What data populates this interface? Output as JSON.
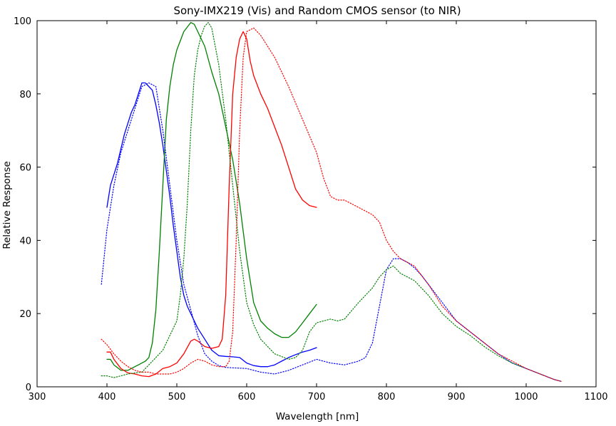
{
  "chart_data": {
    "type": "line",
    "title": "Sony-IMX219 (Vis) and Random CMOS sensor (to NIR)",
    "xlabel": "Wavelength [nm]",
    "ylabel": "Relative Response",
    "xlim": [
      300,
      1100
    ],
    "ylim": [
      0,
      100
    ],
    "xticks": [
      300,
      400,
      500,
      600,
      700,
      800,
      900,
      1000,
      1100
    ],
    "yticks": [
      0,
      20,
      40,
      60,
      80,
      100
    ],
    "grid": false,
    "legend": "none",
    "series": [
      {
        "color": "#0000ff",
        "style": "solid",
        "x": [
          400,
          405,
          410,
          415,
          420,
          425,
          430,
          435,
          440,
          445,
          450,
          455,
          460,
          465,
          470,
          475,
          480,
          485,
          490,
          495,
          500,
          505,
          510,
          515,
          520,
          525,
          530,
          540,
          550,
          560,
          570,
          580,
          590,
          600,
          610,
          620,
          630,
          640,
          650,
          660,
          670,
          680,
          690,
          700
        ],
        "y": [
          49,
          55,
          58,
          61,
          65,
          69,
          72,
          75,
          77,
          80,
          83,
          83,
          82,
          81,
          77,
          72,
          66,
          59,
          52,
          44,
          37,
          30,
          25,
          22,
          20,
          18,
          16,
          13,
          10,
          8.5,
          8.3,
          8.2,
          8,
          6.5,
          5.8,
          5.5,
          5.5,
          6,
          7,
          8,
          8.8,
          9.5,
          10,
          10.7
        ]
      },
      {
        "color": "#008000",
        "style": "solid",
        "x": [
          400,
          405,
          410,
          420,
          430,
          440,
          445,
          450,
          455,
          460,
          465,
          470,
          475,
          480,
          485,
          490,
          495,
          500,
          510,
          520,
          525,
          530,
          540,
          550,
          560,
          570,
          580,
          590,
          600,
          610,
          620,
          630,
          640,
          650,
          660,
          670,
          680,
          690,
          700
        ],
        "y": [
          7.5,
          7.5,
          6,
          4.5,
          4.5,
          5.5,
          6,
          6.5,
          7,
          8,
          12,
          21,
          37,
          55,
          73,
          82,
          88,
          92,
          97,
          99.5,
          99,
          97,
          93,
          86,
          80,
          71,
          62,
          50,
          35,
          23,
          18,
          16,
          14.5,
          13.5,
          13.5,
          15,
          17.5,
          20,
          22.5
        ]
      },
      {
        "color": "#ff0000",
        "style": "solid",
        "x": [
          400,
          405,
          410,
          420,
          430,
          440,
          450,
          460,
          470,
          480,
          490,
          500,
          510,
          520,
          525,
          530,
          540,
          550,
          560,
          565,
          570,
          575,
          580,
          585,
          590,
          595,
          600,
          605,
          610,
          620,
          630,
          640,
          650,
          660,
          670,
          680,
          690,
          700
        ],
        "y": [
          9.5,
          9.5,
          7.5,
          5,
          3.8,
          3.5,
          3,
          2.8,
          3.5,
          5,
          5.5,
          6.5,
          9,
          12.5,
          13,
          12.5,
          11,
          10.5,
          11,
          13,
          25,
          55,
          80,
          90,
          95,
          97,
          95,
          89,
          85,
          80,
          76,
          71,
          66,
          60,
          54,
          51,
          49.5,
          49
        ]
      },
      {
        "color": "#0000ff",
        "style": "dotted",
        "x": [
          392,
          400,
          410,
          420,
          430,
          440,
          450,
          460,
          470,
          480,
          490,
          500,
          510,
          520,
          530,
          540,
          550,
          560,
          570,
          580,
          590,
          600,
          620,
          640,
          660,
          680,
          700,
          720,
          740,
          760,
          770,
          780,
          790,
          800,
          810,
          820,
          830,
          840,
          850,
          860,
          880,
          900,
          920,
          940,
          960,
          980,
          1000,
          1020,
          1040,
          1050
        ],
        "y": [
          28,
          43,
          55,
          64,
          70,
          76,
          82,
          83,
          82,
          70,
          55,
          40,
          28,
          21,
          14,
          9,
          7,
          5.8,
          5.3,
          5.2,
          5.1,
          5,
          4,
          3.5,
          4.5,
          6,
          7.5,
          6.5,
          6,
          7,
          8,
          12,
          22,
          32,
          35,
          35,
          34,
          32.5,
          30.5,
          28,
          23,
          18,
          15,
          12,
          9,
          6.5,
          5,
          3.5,
          2,
          1.5
        ]
      },
      {
        "color": "#008000",
        "style": "dotted",
        "x": [
          392,
          400,
          410,
          420,
          430,
          440,
          450,
          460,
          470,
          480,
          490,
          500,
          505,
          510,
          515,
          520,
          525,
          530,
          535,
          540,
          545,
          550,
          560,
          570,
          580,
          590,
          600,
          610,
          620,
          640,
          660,
          670,
          680,
          690,
          700,
          710,
          720,
          730,
          740,
          760,
          780,
          790,
          800,
          810,
          820,
          840,
          860,
          880,
          900,
          920,
          940,
          960,
          980,
          1000,
          1020,
          1040,
          1050
        ],
        "y": [
          3,
          3,
          2.5,
          3,
          3.5,
          3.8,
          4,
          6,
          8,
          10,
          14,
          18,
          25,
          35,
          50,
          70,
          85,
          92,
          96,
          98.5,
          99.5,
          98,
          88,
          73,
          55,
          37,
          23,
          17,
          13,
          9,
          7.5,
          8,
          10,
          15,
          17.5,
          18,
          18.5,
          18,
          18.5,
          23,
          27,
          30,
          32,
          33,
          31,
          29,
          25,
          20,
          16.5,
          14,
          11,
          8.5,
          6.5,
          5,
          3.5,
          2,
          1.5
        ]
      },
      {
        "color": "#ff0000",
        "style": "dotted",
        "x": [
          392,
          400,
          410,
          420,
          430,
          440,
          450,
          460,
          470,
          480,
          490,
          500,
          510,
          520,
          530,
          540,
          550,
          560,
          570,
          575,
          580,
          585,
          590,
          595,
          600,
          610,
          620,
          640,
          660,
          680,
          700,
          710,
          720,
          730,
          740,
          750,
          760,
          780,
          790,
          800,
          810,
          820,
          840,
          860,
          880,
          900,
          920,
          940,
          960,
          980,
          1000,
          1020,
          1040,
          1050
        ],
        "y": [
          13,
          11.5,
          9,
          7,
          5.5,
          4.5,
          4,
          4,
          3.5,
          3.5,
          3.5,
          4,
          5,
          6.5,
          7.5,
          7,
          6,
          5.5,
          5.5,
          7,
          15,
          40,
          70,
          90,
          97,
          98,
          96,
          90,
          82,
          73,
          64,
          57,
          52,
          51,
          51,
          50,
          49,
          47,
          45,
          40,
          37,
          35,
          33,
          28,
          22,
          18,
          15,
          12,
          9,
          7,
          5,
          3.5,
          2,
          1.5
        ]
      }
    ]
  }
}
